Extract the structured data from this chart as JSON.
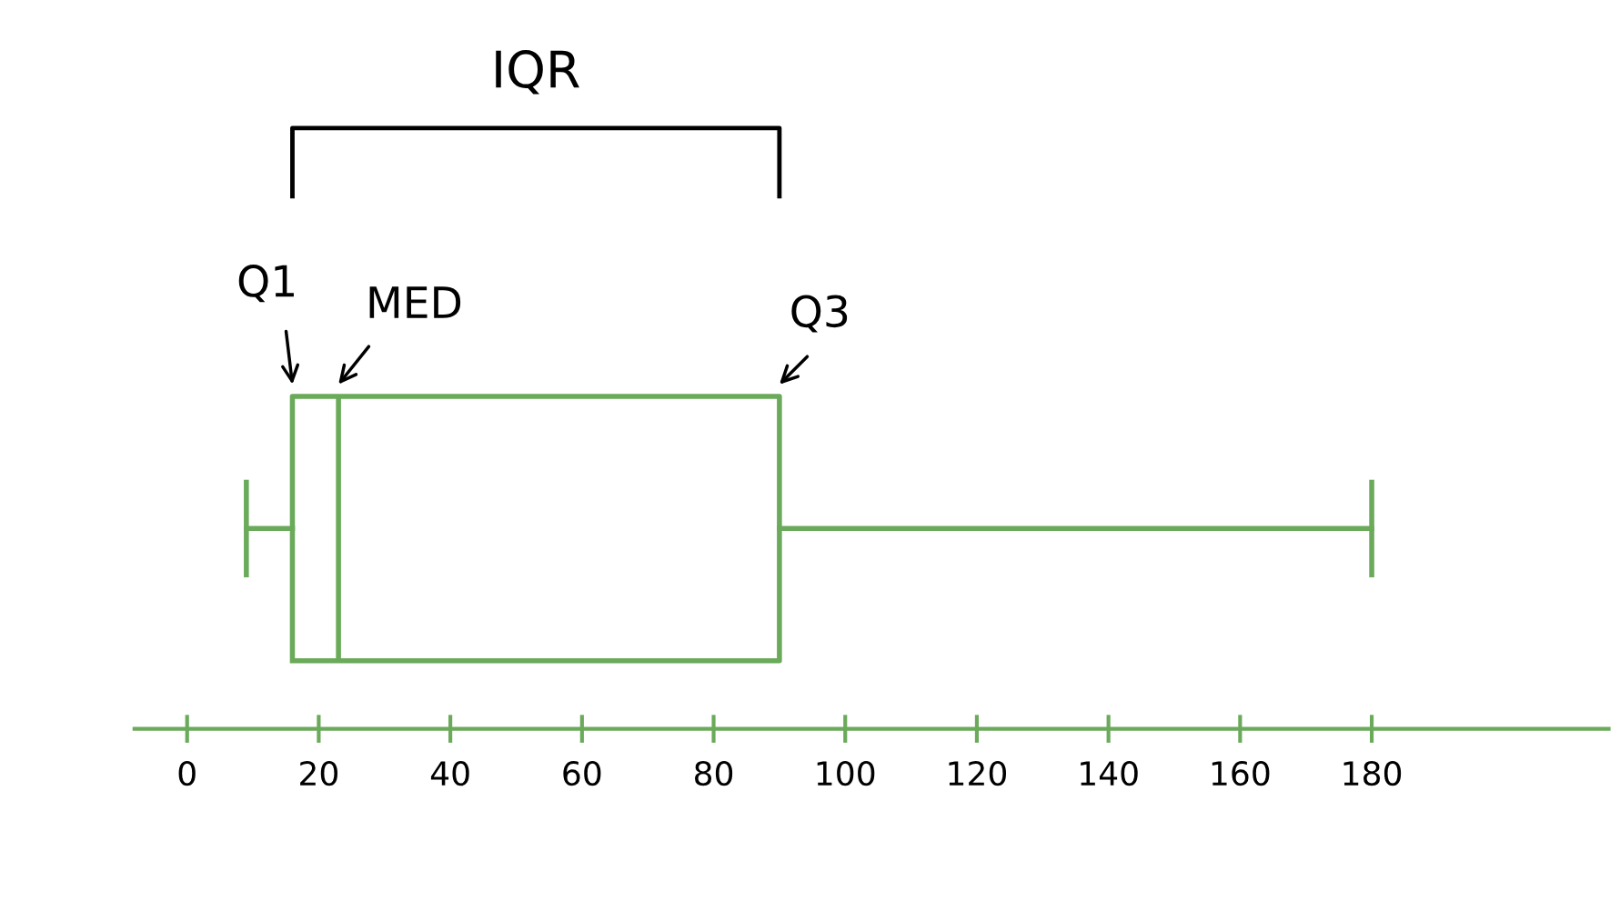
{
  "chart_data": {
    "type": "box",
    "orientation": "horizontal",
    "categories": [
      null
    ],
    "series": [
      {
        "color": "#6aaa5a",
        "boxes": [
          {
            "low": 9,
            "q1": 16,
            "median": 23,
            "q3": 90,
            "high": 180
          }
        ]
      }
    ],
    "xlim": [
      -8,
      216
    ],
    "xticks": [
      0,
      20,
      40,
      60,
      80,
      100,
      120,
      140,
      160,
      180
    ],
    "grid": false,
    "tick_labels": "x",
    "annotations": [
      "IQR",
      "Q1",
      "MED",
      "Q3"
    ]
  }
}
